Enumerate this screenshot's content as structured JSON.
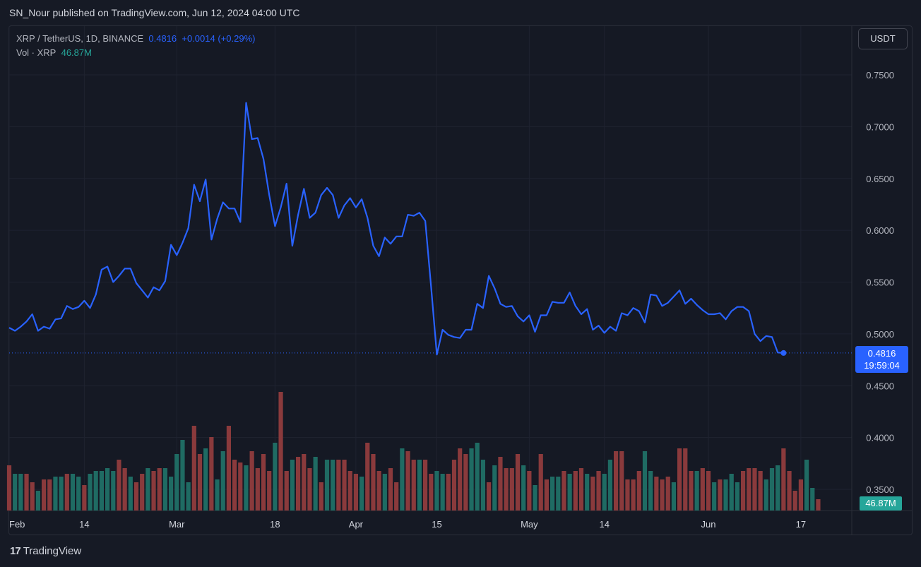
{
  "header": {
    "publish_line": "SN_Nour published on TradingView.com, Jun 12, 2024 04:00 UTC"
  },
  "legend": {
    "symbol": "XRP / TetherUS, 1D, BINANCE",
    "last": "0.4816",
    "change": "+0.0014 (+0.29%)",
    "vol_label": "Vol · XRP",
    "vol_value": "46.87M"
  },
  "unit_button": "USDT",
  "price_tag": {
    "price": "0.4816",
    "countdown": "19:59:04"
  },
  "vol_tag": "46.87M",
  "footer": {
    "brand": "TradingView",
    "logo_icon": "tradingview-logo-icon"
  },
  "colors": {
    "line": "#2962ff",
    "up": "#26a69a",
    "down": "#ef5350",
    "grid": "#1f2330",
    "text": "#b2b5be"
  },
  "chart_data": {
    "type": "line",
    "title": "XRP / TetherUS, 1D, BINANCE",
    "xlabel": "",
    "ylabel": "",
    "ylim": [
      0.33,
      0.78
    ],
    "y_ticks": [
      "0.7500",
      "0.7000",
      "0.6500",
      "0.6000",
      "0.5500",
      "0.5000",
      "0.4500",
      "0.4000",
      "0.3500"
    ],
    "y_tick_values": [
      0.75,
      0.7,
      0.65,
      0.6,
      0.55,
      0.5,
      0.45,
      0.4,
      0.35
    ],
    "x_ticks": [
      {
        "label": "Feb",
        "day": 0
      },
      {
        "label": "14",
        "day": 13
      },
      {
        "label": "Mar",
        "day": 29
      },
      {
        "label": "18",
        "day": 46
      },
      {
        "label": "Apr",
        "day": 60
      },
      {
        "label": "15",
        "day": 74
      },
      {
        "label": "May",
        "day": 90
      },
      {
        "label": "14",
        "day": 103
      },
      {
        "label": "Jun",
        "day": 121
      },
      {
        "label": "17",
        "day": 137
      }
    ],
    "x_day_range": [
      0,
      147
    ],
    "series": [
      {
        "values": [
          0.506,
          0.503,
          0.507,
          0.512,
          0.519,
          0.503,
          0.507,
          0.505,
          0.514,
          0.515,
          0.527,
          0.524,
          0.526,
          0.532,
          0.525,
          0.538,
          0.562,
          0.565,
          0.55,
          0.556,
          0.563,
          0.563,
          0.549,
          0.542,
          0.535,
          0.545,
          0.542,
          0.551,
          0.586,
          0.576,
          0.588,
          0.602,
          0.644,
          0.628,
          0.649,
          0.591,
          0.611,
          0.627,
          0.621,
          0.621,
          0.608,
          0.723,
          0.688,
          0.689,
          0.669,
          0.634,
          0.604,
          0.622,
          0.645,
          0.585,
          0.615,
          0.64,
          0.612,
          0.617,
          0.634,
          0.641,
          0.634,
          0.612,
          0.624,
          0.631,
          0.622,
          0.63,
          0.612,
          0.585,
          0.575,
          0.593,
          0.587,
          0.594,
          0.594,
          0.615,
          0.614,
          0.617,
          0.609,
          0.546,
          0.48,
          0.504,
          0.499,
          0.497,
          0.496,
          0.504,
          0.504,
          0.529,
          0.525,
          0.556,
          0.544,
          0.529,
          0.526,
          0.527,
          0.517,
          0.512,
          0.518,
          0.502,
          0.518,
          0.518,
          0.531,
          0.53,
          0.53,
          0.54,
          0.527,
          0.519,
          0.524,
          0.504,
          0.508,
          0.501,
          0.507,
          0.503,
          0.52,
          0.518,
          0.525,
          0.522,
          0.511,
          0.538,
          0.537,
          0.527,
          0.53,
          0.536,
          0.542,
          0.529,
          0.534,
          0.528,
          0.523,
          0.519,
          0.519,
          0.52,
          0.514,
          0.522,
          0.526,
          0.526,
          0.522,
          0.5,
          0.493,
          0.498,
          0.497,
          0.482,
          0.4816
        ]
      }
    ],
    "volume": {
      "label": "Vol · XRP",
      "values": [
        32,
        26,
        26,
        26,
        20,
        14,
        22,
        22,
        24,
        24,
        26,
        26,
        24,
        18,
        26,
        28,
        28,
        30,
        28,
        36,
        30,
        24,
        20,
        26,
        30,
        28,
        30,
        30,
        24,
        40,
        50,
        20,
        60,
        40,
        44,
        52,
        22,
        42,
        60,
        36,
        34,
        32,
        42,
        30,
        40,
        28,
        48,
        84,
        28,
        36,
        38,
        40,
        30,
        38,
        20,
        36,
        36,
        36,
        36,
        28,
        26,
        24,
        48,
        40,
        28,
        26,
        30,
        20,
        44,
        42,
        36,
        36,
        36,
        26,
        28,
        26,
        26,
        36,
        44,
        40,
        44,
        48,
        36,
        20,
        32,
        38,
        30,
        30,
        40,
        32,
        28,
        18,
        40,
        22,
        24,
        24,
        28,
        26,
        28,
        30,
        26,
        24,
        28,
        26,
        36,
        42,
        42,
        22,
        22,
        28,
        42,
        28,
        24,
        22,
        24,
        20,
        44,
        44,
        28,
        28,
        30,
        28,
        20,
        22,
        22,
        26,
        20,
        28,
        30,
        30,
        28,
        22,
        30,
        32,
        44,
        28,
        14,
        22,
        36,
        16,
        8
      ],
      "down": [
        1,
        0,
        0,
        1,
        1,
        0,
        1,
        1,
        0,
        0,
        1,
        0,
        0,
        1,
        0,
        0,
        0,
        0,
        0,
        1,
        1,
        0,
        1,
        1,
        0,
        1,
        1,
        0,
        0,
        0,
        0,
        0,
        1,
        1,
        0,
        1,
        0,
        0,
        1,
        1,
        1,
        0,
        1,
        1,
        1,
        1,
        0,
        1,
        1,
        0,
        1,
        1,
        1,
        0,
        1,
        0,
        0,
        1,
        1,
        1,
        1,
        0,
        1,
        1,
        1,
        0,
        1,
        1,
        0,
        1,
        1,
        0,
        1,
        1,
        0,
        0,
        1,
        1,
        1,
        1,
        0,
        0,
        0,
        1,
        0,
        1,
        1,
        1,
        1,
        0,
        1,
        0,
        1,
        1,
        0,
        0,
        1,
        0,
        1,
        1,
        0,
        1,
        1,
        0,
        0,
        1,
        1,
        1,
        1,
        1,
        0,
        0,
        1,
        1,
        1,
        0,
        1,
        1,
        1,
        0,
        1,
        1,
        0,
        1,
        0,
        0,
        0,
        1,
        1,
        1,
        1,
        0,
        0,
        0,
        1,
        1,
        1,
        1,
        0,
        0,
        1
      ]
    }
  }
}
